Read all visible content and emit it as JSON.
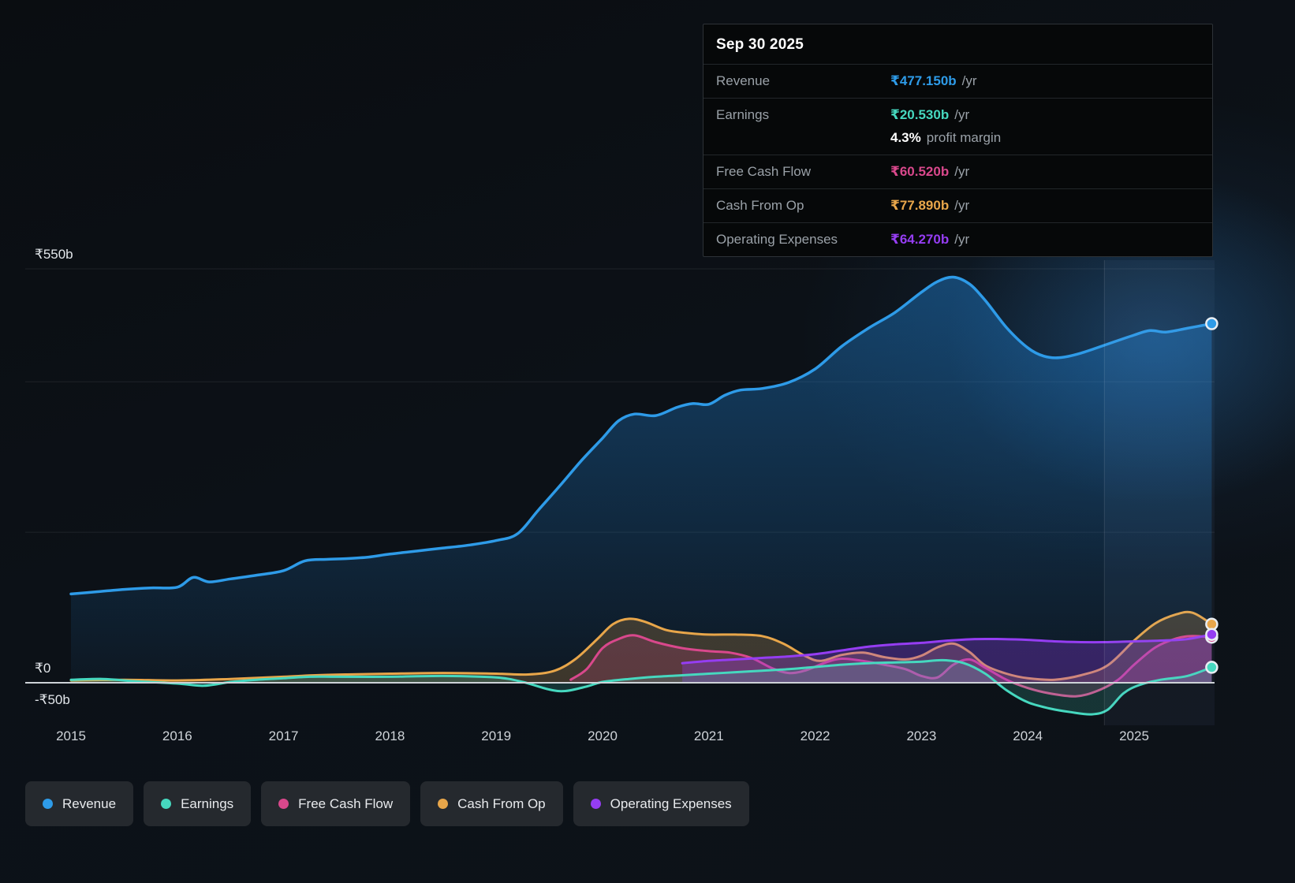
{
  "tooltip": {
    "date": "Sep 30 2025",
    "rows": [
      {
        "label": "Revenue",
        "value": "₹477.150b",
        "suffix": "/yr",
        "color": "#2e9be8",
        "sub": false
      },
      {
        "label": "Earnings",
        "value": "₹20.530b",
        "suffix": "/yr",
        "color": "#46d8bf",
        "sub": false
      },
      {
        "label": "",
        "value": "4.3%",
        "suffix": "profit margin",
        "color": "#ffffff",
        "sub": true
      },
      {
        "label": "Free Cash Flow",
        "value": "₹60.520b",
        "suffix": "/yr",
        "color": "#d9488c",
        "sub": false
      },
      {
        "label": "Cash From Op",
        "value": "₹77.890b",
        "suffix": "/yr",
        "color": "#e8a64a",
        "sub": false
      },
      {
        "label": "Operating Expenses",
        "value": "₹64.270b",
        "suffix": "/yr",
        "color": "#953df2",
        "sub": false
      }
    ]
  },
  "axis": {
    "y_labels": [
      {
        "text": "₹550b",
        "value": 550
      },
      {
        "text": "₹0",
        "value": 0
      },
      {
        "text": "-₹50b",
        "value": -50
      }
    ],
    "x_labels": [
      "2015",
      "2016",
      "2017",
      "2018",
      "2019",
      "2020",
      "2021",
      "2022",
      "2023",
      "2024",
      "2025"
    ]
  },
  "legend": [
    {
      "label": "Revenue",
      "color": "#2e9be8"
    },
    {
      "label": "Earnings",
      "color": "#46d8bf"
    },
    {
      "label": "Free Cash Flow",
      "color": "#d9488c"
    },
    {
      "label": "Cash From Op",
      "color": "#e8a64a"
    },
    {
      "label": "Operating Expenses",
      "color": "#953df2"
    }
  ],
  "chart_data": {
    "type": "area",
    "title": "Company earnings and revenue history",
    "unit": "₹ billions per year",
    "x_axis": {
      "range": [
        2015,
        2025.75
      ],
      "ticks": [
        2015,
        2016,
        2017,
        2018,
        2019,
        2020,
        2021,
        2022,
        2023,
        2024,
        2025
      ]
    },
    "y_axis": {
      "range": [
        -50,
        550
      ],
      "gridlines": [
        550,
        400,
        200
      ],
      "zero_line": 0
    },
    "now_marker": 2024.72,
    "series": [
      {
        "name": "Revenue",
        "color": "#2e9be8",
        "fill_opacity": 0.3,
        "points": [
          [
            2015,
            118
          ],
          [
            2015.25,
            121
          ],
          [
            2015.5,
            124
          ],
          [
            2015.75,
            126
          ],
          [
            2016,
            127
          ],
          [
            2016.15,
            140
          ],
          [
            2016.3,
            134
          ],
          [
            2016.5,
            138
          ],
          [
            2016.75,
            143
          ],
          [
            2017,
            149
          ],
          [
            2017.2,
            162
          ],
          [
            2017.4,
            164
          ],
          [
            2017.6,
            165
          ],
          [
            2017.8,
            167
          ],
          [
            2018,
            171
          ],
          [
            2018.25,
            175
          ],
          [
            2018.5,
            179
          ],
          [
            2018.75,
            183
          ],
          [
            2019,
            189
          ],
          [
            2019.2,
            198
          ],
          [
            2019.4,
            230
          ],
          [
            2019.6,
            262
          ],
          [
            2019.8,
            295
          ],
          [
            2020,
            325
          ],
          [
            2020.15,
            348
          ],
          [
            2020.3,
            357
          ],
          [
            2020.5,
            355
          ],
          [
            2020.7,
            366
          ],
          [
            2020.85,
            371
          ],
          [
            2021,
            370
          ],
          [
            2021.15,
            382
          ],
          [
            2021.3,
            389
          ],
          [
            2021.5,
            391
          ],
          [
            2021.75,
            399
          ],
          [
            2022,
            417
          ],
          [
            2022.25,
            447
          ],
          [
            2022.5,
            471
          ],
          [
            2022.75,
            492
          ],
          [
            2023,
            519
          ],
          [
            2023.15,
            533
          ],
          [
            2023.3,
            539
          ],
          [
            2023.45,
            530
          ],
          [
            2023.6,
            508
          ],
          [
            2023.8,
            472
          ],
          [
            2024,
            445
          ],
          [
            2024.15,
            434
          ],
          [
            2024.3,
            432
          ],
          [
            2024.5,
            438
          ],
          [
            2024.75,
            450
          ],
          [
            2025,
            462
          ],
          [
            2025.15,
            468
          ],
          [
            2025.3,
            466
          ],
          [
            2025.5,
            471
          ],
          [
            2025.73,
            477.15
          ]
        ]
      },
      {
        "name": "Cash From Op",
        "color": "#e8a64a",
        "fill_opacity": 0.22,
        "points": [
          [
            2015,
            3
          ],
          [
            2015.5,
            4
          ],
          [
            2016,
            3
          ],
          [
            2016.5,
            5
          ],
          [
            2017,
            8
          ],
          [
            2017.3,
            10
          ],
          [
            2017.6,
            11
          ],
          [
            2018,
            12
          ],
          [
            2018.5,
            13
          ],
          [
            2019,
            12
          ],
          [
            2019.3,
            11
          ],
          [
            2019.55,
            16
          ],
          [
            2019.75,
            32
          ],
          [
            2019.95,
            58
          ],
          [
            2020.1,
            78
          ],
          [
            2020.25,
            85
          ],
          [
            2020.4,
            81
          ],
          [
            2020.6,
            70
          ],
          [
            2020.8,
            66
          ],
          [
            2021,
            64
          ],
          [
            2021.25,
            64
          ],
          [
            2021.5,
            62
          ],
          [
            2021.7,
            52
          ],
          [
            2021.9,
            36
          ],
          [
            2022.05,
            29
          ],
          [
            2022.25,
            37
          ],
          [
            2022.45,
            40
          ],
          [
            2022.65,
            34
          ],
          [
            2022.85,
            31
          ],
          [
            2023,
            36
          ],
          [
            2023.15,
            47
          ],
          [
            2023.3,
            52
          ],
          [
            2023.45,
            41
          ],
          [
            2023.6,
            23
          ],
          [
            2023.8,
            12
          ],
          [
            2024,
            6
          ],
          [
            2024.25,
            4
          ],
          [
            2024.5,
            10
          ],
          [
            2024.75,
            23
          ],
          [
            2025,
            56
          ],
          [
            2025.2,
            79
          ],
          [
            2025.4,
            91
          ],
          [
            2025.55,
            93
          ],
          [
            2025.73,
            77.89
          ]
        ]
      },
      {
        "name": "Free Cash Flow",
        "color": "#d9488c",
        "fill_opacity": 0.2,
        "points": [
          [
            2019.7,
            4
          ],
          [
            2019.85,
            18
          ],
          [
            2020,
            46
          ],
          [
            2020.15,
            58
          ],
          [
            2020.3,
            63
          ],
          [
            2020.5,
            54
          ],
          [
            2020.75,
            46
          ],
          [
            2021,
            42
          ],
          [
            2021.2,
            40
          ],
          [
            2021.4,
            33
          ],
          [
            2021.6,
            19
          ],
          [
            2021.75,
            13
          ],
          [
            2021.9,
            16
          ],
          [
            2022.1,
            27
          ],
          [
            2022.25,
            32
          ],
          [
            2022.45,
            29
          ],
          [
            2022.65,
            24
          ],
          [
            2022.85,
            18
          ],
          [
            2023,
            9
          ],
          [
            2023.15,
            7
          ],
          [
            2023.3,
            24
          ],
          [
            2023.45,
            31
          ],
          [
            2023.6,
            20
          ],
          [
            2023.8,
            4
          ],
          [
            2024,
            -7
          ],
          [
            2024.2,
            -14
          ],
          [
            2024.45,
            -18
          ],
          [
            2024.65,
            -11
          ],
          [
            2024.85,
            4
          ],
          [
            2025,
            24
          ],
          [
            2025.2,
            47
          ],
          [
            2025.4,
            59
          ],
          [
            2025.55,
            62
          ],
          [
            2025.73,
            60.52
          ]
        ]
      },
      {
        "name": "Operating Expenses",
        "color": "#953df2",
        "fill_opacity": 0.3,
        "points": [
          [
            2020.75,
            26
          ],
          [
            2021,
            29
          ],
          [
            2021.25,
            31
          ],
          [
            2021.5,
            33
          ],
          [
            2021.75,
            35
          ],
          [
            2022,
            38
          ],
          [
            2022.25,
            43
          ],
          [
            2022.5,
            48
          ],
          [
            2022.75,
            51
          ],
          [
            2023,
            53
          ],
          [
            2023.25,
            56
          ],
          [
            2023.5,
            58
          ],
          [
            2023.75,
            58
          ],
          [
            2024,
            57
          ],
          [
            2024.25,
            55
          ],
          [
            2024.5,
            54
          ],
          [
            2024.75,
            54
          ],
          [
            2025,
            55
          ],
          [
            2025.25,
            56
          ],
          [
            2025.5,
            58
          ],
          [
            2025.73,
            64.27
          ]
        ]
      },
      {
        "name": "Earnings",
        "color": "#46d8bf",
        "fill_opacity": 0.18,
        "points": [
          [
            2015,
            4
          ],
          [
            2015.3,
            5
          ],
          [
            2015.6,
            2
          ],
          [
            2016,
            -1
          ],
          [
            2016.25,
            -4
          ],
          [
            2016.5,
            1
          ],
          [
            2016.75,
            4
          ],
          [
            2017,
            6
          ],
          [
            2017.25,
            8
          ],
          [
            2017.5,
            8
          ],
          [
            2018,
            8
          ],
          [
            2018.5,
            9
          ],
          [
            2019,
            7
          ],
          [
            2019.25,
            1
          ],
          [
            2019.5,
            -9
          ],
          [
            2019.65,
            -11
          ],
          [
            2019.85,
            -5
          ],
          [
            2020,
            1
          ],
          [
            2020.25,
            5
          ],
          [
            2020.5,
            8
          ],
          [
            2020.75,
            10
          ],
          [
            2021,
            12
          ],
          [
            2021.25,
            14
          ],
          [
            2021.5,
            16
          ],
          [
            2021.75,
            18
          ],
          [
            2022,
            21
          ],
          [
            2022.25,
            24
          ],
          [
            2022.5,
            26
          ],
          [
            2022.75,
            27
          ],
          [
            2023,
            28
          ],
          [
            2023.2,
            30
          ],
          [
            2023.4,
            26
          ],
          [
            2023.6,
            12
          ],
          [
            2023.8,
            -10
          ],
          [
            2024,
            -26
          ],
          [
            2024.2,
            -34
          ],
          [
            2024.4,
            -39
          ],
          [
            2024.6,
            -42
          ],
          [
            2024.75,
            -36
          ],
          [
            2024.9,
            -14
          ],
          [
            2025.05,
            -3
          ],
          [
            2025.25,
            4
          ],
          [
            2025.5,
            9
          ],
          [
            2025.73,
            20.53
          ]
        ]
      }
    ]
  }
}
